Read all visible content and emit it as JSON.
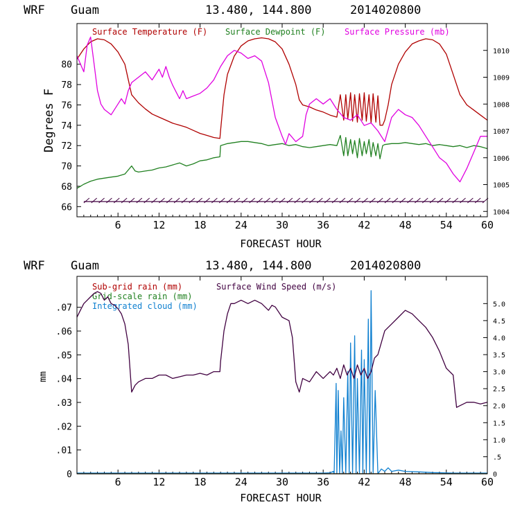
{
  "colors": {
    "temperature": "#b00000",
    "dewpoint": "#208020",
    "pressure": "#e000e0",
    "subgrid_rain": "#b00000",
    "gridscale_rain": "#208020",
    "cloud": "#1080d0",
    "wind": "#400040",
    "axis": "#000000"
  },
  "chart_data": [
    {
      "type": "line",
      "header": {
        "model": "WRF",
        "site": "Guam",
        "coords": "13.480, 144.800",
        "init": "2014020800"
      },
      "xlabel": "FORECAST HOUR",
      "ylabel": "Degrees F",
      "xlim": [
        0,
        60
      ],
      "ylim_left": [
        65,
        84
      ],
      "ylim_right": [
        1003.8,
        1011.0
      ],
      "x_ticks": [
        6,
        12,
        18,
        24,
        30,
        36,
        42,
        48,
        54,
        60
      ],
      "x_tick_labels": [
        "6",
        "12",
        "18",
        "24",
        "30",
        "36",
        "42",
        "48",
        "54",
        "60"
      ],
      "y_ticks_left": [
        66,
        68,
        70,
        72,
        74,
        76,
        78,
        80
      ],
      "y_tick_labels_left": [
        "66",
        "68",
        "70",
        "72",
        "74",
        "76",
        "78",
        "80"
      ],
      "y_ticks_right": [
        1004,
        1005,
        1006,
        1007,
        1008,
        1009,
        1010
      ],
      "y_tick_labels_right": [
        "1004",
        "1005",
        "1006",
        "1007",
        "1008",
        "1009",
        "1010"
      ],
      "legend": [
        "Surface Temperature (F)",
        "Surface Dewpoint (F)",
        "Surface Pressure (mb)"
      ],
      "series": [
        {
          "name": "Surface Temperature (F)",
          "key": "temperature",
          "axis": "left",
          "x": [
            0,
            1,
            2,
            3,
            4,
            5,
            6,
            7,
            7.5,
            8,
            9,
            10,
            11,
            12,
            13,
            14,
            15,
            16,
            17,
            18,
            19,
            20,
            20.9,
            21,
            21.5,
            22,
            23,
            24,
            25,
            26,
            27,
            28,
            29,
            30,
            31,
            32,
            32.5,
            33,
            34,
            35,
            36,
            37,
            38,
            38.5,
            39,
            39.3,
            39.6,
            40,
            40.3,
            40.6,
            41,
            41.3,
            41.7,
            42,
            42.3,
            42.7,
            43,
            43.3,
            43.7,
            44,
            44.3,
            44.7,
            45,
            45.5,
            46,
            47,
            48,
            49,
            50,
            51,
            52,
            53,
            54,
            55,
            56,
            57,
            58,
            59,
            60
          ],
          "values": [
            80.5,
            81.5,
            82.2,
            82.5,
            82.4,
            82.0,
            81.2,
            80.0,
            78.5,
            77.0,
            76.2,
            75.6,
            75.1,
            74.8,
            74.5,
            74.2,
            74.0,
            73.8,
            73.5,
            73.2,
            73.0,
            72.8,
            72.7,
            73.5,
            77.0,
            79.0,
            80.8,
            81.8,
            82.3,
            82.5,
            82.6,
            82.5,
            82.2,
            81.5,
            80.0,
            78.0,
            76.5,
            76.0,
            75.8,
            75.5,
            75.3,
            75.0,
            74.8,
            77.0,
            74.5,
            77.0,
            74.6,
            77.2,
            74.4,
            77.0,
            74.3,
            77.1,
            74.5,
            77.2,
            74.4,
            77.0,
            74.2,
            77.1,
            74.3,
            76.9,
            74.0,
            74.0,
            74.5,
            76.0,
            78.0,
            80.0,
            81.2,
            82.0,
            82.3,
            82.5,
            82.4,
            82.0,
            81.0,
            79.0,
            77.0,
            76.0,
            75.5,
            75.0,
            74.5
          ]
        },
        {
          "name": "Surface Dewpoint (F)",
          "key": "dewpoint",
          "axis": "left",
          "x": [
            0,
            1,
            2,
            3,
            4,
            5,
            6,
            7,
            7.5,
            8,
            8.5,
            9,
            10,
            11,
            12,
            13,
            14,
            15,
            16,
            17,
            18,
            19,
            20,
            20.9,
            21,
            22,
            23,
            24,
            25,
            26,
            27,
            28,
            29,
            30,
            31,
            32,
            33,
            34,
            35,
            36,
            37,
            38,
            38.5,
            39,
            39.3,
            39.6,
            40,
            40.3,
            40.6,
            41,
            41.3,
            41.7,
            42,
            42.3,
            42.7,
            43,
            43.3,
            43.7,
            44,
            44.3,
            44.7,
            45,
            46,
            47,
            48,
            49,
            50,
            51,
            52,
            53,
            54,
            55,
            56,
            57,
            58,
            59,
            60
          ],
          "values": [
            67.8,
            68.2,
            68.5,
            68.7,
            68.8,
            68.9,
            69.0,
            69.2,
            69.6,
            70.0,
            69.5,
            69.4,
            69.5,
            69.6,
            69.8,
            69.9,
            70.1,
            70.3,
            70.0,
            70.2,
            70.5,
            70.6,
            70.8,
            70.9,
            72.0,
            72.2,
            72.3,
            72.4,
            72.4,
            72.3,
            72.2,
            72.0,
            72.1,
            72.2,
            72.0,
            72.1,
            71.9,
            71.8,
            71.9,
            72.0,
            72.1,
            72.0,
            73.0,
            71.0,
            72.8,
            71.0,
            72.6,
            71.2,
            72.5,
            70.8,
            72.7,
            71.0,
            72.4,
            71.2,
            72.6,
            70.9,
            72.3,
            71.0,
            72.2,
            70.7,
            72.0,
            72.1,
            72.2,
            72.2,
            72.3,
            72.2,
            72.1,
            72.2,
            72.0,
            72.1,
            72.0,
            71.9,
            72.0,
            71.8,
            72.0,
            71.9,
            71.7
          ]
        },
        {
          "name": "Surface Pressure (mb)",
          "key": "pressure",
          "axis": "right",
          "x": [
            0,
            0.5,
            1,
            1.5,
            2,
            2.5,
            3,
            3.5,
            4,
            5,
            6,
            6.5,
            7,
            7.5,
            8,
            9,
            10,
            11,
            12,
            12.5,
            13,
            13.5,
            14,
            15,
            15.5,
            16,
            17,
            18,
            19,
            20,
            21,
            22,
            23,
            24,
            25,
            26,
            27,
            27.5,
            28,
            29,
            30,
            30.5,
            31,
            32,
            33,
            33.5,
            34,
            35,
            36,
            37,
            38,
            39,
            40,
            41,
            42,
            43,
            44,
            45,
            46,
            47,
            48,
            49,
            50,
            51,
            52,
            53,
            54,
            55,
            56,
            57,
            58,
            59,
            60
          ],
          "values": [
            1009.8,
            1009.5,
            1009.2,
            1010.2,
            1010.5,
            1009.5,
            1008.5,
            1008.0,
            1007.8,
            1007.6,
            1008.0,
            1008.2,
            1008.0,
            1008.5,
            1008.8,
            1009.0,
            1009.2,
            1008.9,
            1009.3,
            1009.0,
            1009.4,
            1009.0,
            1008.7,
            1008.2,
            1008.5,
            1008.2,
            1008.3,
            1008.4,
            1008.6,
            1008.9,
            1009.4,
            1009.8,
            1010.0,
            1009.9,
            1009.7,
            1009.8,
            1009.6,
            1009.2,
            1008.8,
            1007.5,
            1006.8,
            1006.5,
            1006.9,
            1006.6,
            1006.8,
            1007.6,
            1008.0,
            1008.2,
            1008.0,
            1008.2,
            1007.8,
            1007.5,
            1007.4,
            1007.6,
            1007.2,
            1007.3,
            1007.0,
            1006.6,
            1007.5,
            1007.8,
            1007.6,
            1007.5,
            1007.2,
            1006.8,
            1006.4,
            1006.0,
            1005.8,
            1005.4,
            1005.1,
            1005.6,
            1006.2,
            1006.8,
            1006.8
          ]
        }
      ],
      "wind_barbs": {
        "y_value": 66.5,
        "x_start": 1,
        "x_end": 59.5,
        "spacing": 1.1
      }
    },
    {
      "type": "line",
      "header": {
        "model": "WRF",
        "site": "Guam",
        "coords": "13.480, 144.800",
        "init": "2014020800"
      },
      "xlabel": "FORECAST HOUR",
      "ylabel": "mm",
      "xlim": [
        0,
        60
      ],
      "ylim_left": [
        0,
        0.083
      ],
      "ylim_right": [
        0,
        5.8
      ],
      "x_ticks": [
        6,
        12,
        18,
        24,
        30,
        36,
        42,
        48,
        54,
        60
      ],
      "x_tick_labels": [
        "6",
        "12",
        "18",
        "24",
        "30",
        "36",
        "42",
        "48",
        "54",
        "60"
      ],
      "y_ticks_left": [
        0,
        0.01,
        0.02,
        0.03,
        0.04,
        0.05,
        0.06,
        0.07
      ],
      "y_tick_labels_left": [
        "0",
        ".01",
        ".02",
        ".03",
        ".04",
        ".05",
        ".06",
        ".07"
      ],
      "y_ticks_right": [
        0,
        0.5,
        1.0,
        1.5,
        2.0,
        2.5,
        3.0,
        3.5,
        4.0,
        4.5,
        5.0
      ],
      "y_tick_labels_right": [
        "0",
        ".5",
        "1.0",
        "1.5",
        "2.0",
        "2.5",
        "3.0",
        "3.5",
        "4.0",
        "4.5",
        "5.0"
      ],
      "legend": [
        "Sub-grid rain (mm)",
        "Grid-scale rain (mm)",
        "Integrated cloud (mm)",
        "Surface Wind Speed (m/s)"
      ],
      "series": [
        {
          "name": "Integrated cloud (mm)",
          "key": "cloud",
          "axis": "left",
          "x": [
            0,
            10,
            20,
            30,
            36,
            37,
            37.5,
            37.6,
            37.9,
            38.0,
            38.2,
            38.4,
            38.6,
            38.8,
            39.0,
            39.3,
            39.6,
            39.8,
            40.0,
            40.3,
            40.6,
            40.8,
            41.0,
            41.3,
            41.6,
            41.8,
            42.0,
            42.3,
            42.6,
            42.8,
            43.0,
            43.3,
            43.6,
            44.0,
            44.5,
            45.0,
            45.5,
            46,
            47,
            48,
            50,
            52,
            55,
            60
          ],
          "values": [
            0.0003,
            0.0003,
            0.0003,
            0.0003,
            0.0003,
            0.0004,
            0.001,
            0.0,
            0.038,
            0.0,
            0.035,
            0.0,
            0.018,
            0.0,
            0.032,
            0.0,
            0.043,
            0.0,
            0.055,
            0.0,
            0.058,
            0.0,
            0.04,
            0.0,
            0.052,
            0.0,
            0.048,
            0.0,
            0.065,
            0.0,
            0.077,
            0.0,
            0.035,
            0.0,
            0.002,
            0.001,
            0.0025,
            0.001,
            0.0015,
            0.001,
            0.0008,
            0.0005,
            0.0003,
            0.0003
          ]
        },
        {
          "name": "Surface Wind Speed (m/s)",
          "key": "wind",
          "axis": "right",
          "x": [
            0,
            0.5,
            1,
            1.5,
            2,
            2.5,
            3,
            3.5,
            4,
            4.5,
            5,
            5.5,
            6,
            6.5,
            7,
            7.5,
            8,
            8.5,
            9,
            10,
            11,
            12,
            13,
            14,
            15,
            16,
            17,
            18,
            19,
            20,
            20.9,
            21,
            21.5,
            22,
            22.5,
            23,
            24,
            25,
            26,
            27,
            28,
            28.5,
            29,
            30,
            31,
            31.5,
            32,
            32.5,
            33,
            34,
            35,
            36,
            37,
            37.5,
            38,
            38.5,
            39,
            39.5,
            40,
            40.5,
            41,
            41.5,
            42,
            42.5,
            43,
            43.5,
            44,
            45,
            46,
            47,
            48,
            49,
            50,
            51,
            52,
            53,
            54,
            55,
            55.5,
            56,
            57,
            58,
            59,
            60
          ],
          "values": [
            4.6,
            4.8,
            5.0,
            5.1,
            5.2,
            5.3,
            5.35,
            5.3,
            5.1,
            5.2,
            5.0,
            4.95,
            4.85,
            4.7,
            4.4,
            3.8,
            2.4,
            2.6,
            2.7,
            2.8,
            2.8,
            2.9,
            2.9,
            2.8,
            2.85,
            2.9,
            2.9,
            2.95,
            2.9,
            3.0,
            3.0,
            3.3,
            4.2,
            4.7,
            5.0,
            5.0,
            5.1,
            5.0,
            5.1,
            5.0,
            4.8,
            4.95,
            4.9,
            4.6,
            4.5,
            4.0,
            2.7,
            2.4,
            2.8,
            2.7,
            3.0,
            2.8,
            3.0,
            2.9,
            3.1,
            2.8,
            3.2,
            2.9,
            3.1,
            2.8,
            3.2,
            2.9,
            3.1,
            2.8,
            3.0,
            3.4,
            3.5,
            4.2,
            4.4,
            4.6,
            4.8,
            4.7,
            4.5,
            4.3,
            4.0,
            3.6,
            3.1,
            2.9,
            1.95,
            2.0,
            2.1,
            2.1,
            2.05,
            2.1
          ]
        },
        {
          "name": "Sub-grid rain (mm)",
          "key": "subgrid_rain",
          "axis": "left",
          "x": [
            0,
            60
          ],
          "values": [
            0,
            0
          ]
        },
        {
          "name": "Grid-scale rain (mm)",
          "key": "gridscale_rain",
          "axis": "left",
          "x": [
            0,
            60
          ],
          "values": [
            0,
            0
          ]
        }
      ]
    }
  ]
}
